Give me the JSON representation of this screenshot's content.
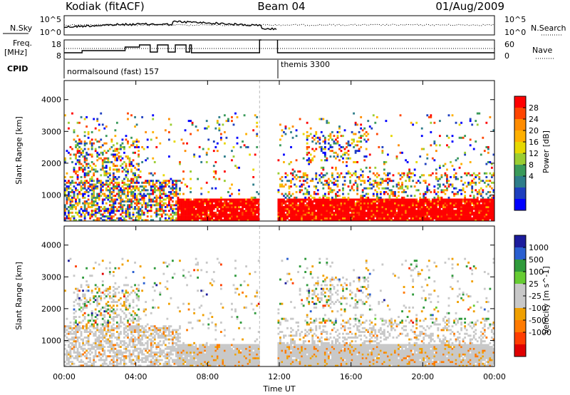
{
  "header": {
    "site": "Kodiak (fitACF)",
    "beam": "Beam 04",
    "date": "01/Aug/2009"
  },
  "noise_panel": {
    "left_label": "N.Sky",
    "right_label": "N.Search",
    "left_ticks": [
      "10^5",
      "10^0"
    ],
    "right_ticks": [
      "10^5",
      "10^0"
    ]
  },
  "freq_panel": {
    "left_label_line1": "Freq.",
    "left_label_line2": "[MHz]",
    "right_label": "Nave",
    "left_ticks": [
      "18",
      "8"
    ],
    "right_ticks": [
      "60",
      "0"
    ]
  },
  "cpid": {
    "label": "CPID",
    "segments": [
      {
        "name": "normalsound (fast) 157",
        "start": "00:00",
        "end": "11:50"
      },
      {
        "name": "themis 3300",
        "start": "11:50",
        "end": "24:00"
      }
    ]
  },
  "chart_data": [
    {
      "type": "heatmap",
      "quantity": "Power",
      "ylabel": "Slant Range [km]",
      "colorbar_label": "Power [dB]",
      "colorbar_ticks": [
        "28",
        "24",
        "20",
        "16",
        "12",
        "8",
        "4"
      ],
      "colorbar_colors": [
        "#ff0000",
        "#ff4500",
        "#ff8c00",
        "#ffb000",
        "#e6d800",
        "#9acd32",
        "#3a9a5a",
        "#2e7d8a",
        "#1e3fbf",
        "#0000ff"
      ],
      "yticks": [
        1000,
        2000,
        3000,
        4000
      ],
      "ylim": [
        180,
        4600
      ],
      "xlim_hours": [
        0,
        24
      ],
      "data_gap_hours": [
        10.9,
        11.9
      ],
      "summary": "Strong backscatter (>28 dB) between ~200-900 km from 06:30 to 24:00; scattered weaker echoes up to ~3500 km"
    },
    {
      "type": "heatmap",
      "quantity": "Velocity",
      "ylabel": "Slant Range [km]",
      "colorbar_label": "Velocity [m s^-1]",
      "colorbar_ticks": [
        "1000",
        "500",
        "100",
        "25",
        "-25",
        "-100",
        "-500",
        "-1000"
      ],
      "colorbar_colors": [
        "#1c1c9c",
        "#2a5fd0",
        "#2f9a3c",
        "#66cc33",
        "#c8c8c8",
        "#c8c8c8",
        "#f0a000",
        "#ff7a00",
        "#ff3d00",
        "#e00000"
      ],
      "yticks": [
        1000,
        2000,
        3000,
        4000
      ],
      "ylim": [
        180,
        4600
      ],
      "xlim_hours": [
        0,
        24
      ],
      "data_gap_hours": [
        10.9,
        11.9
      ],
      "summary": "Mostly low velocity (ground scatter, grey) below 1500 km; patchy positive/negative echoes at higher ranges"
    }
  ],
  "xaxis": {
    "label": "Time UT",
    "ticks": [
      "00:00",
      "04:00",
      "08:00",
      "12:00",
      "16:00",
      "20:00",
      "00:00"
    ]
  },
  "colors": {
    "frame": "#000000",
    "ground_scatter": "#c8c8c8"
  }
}
